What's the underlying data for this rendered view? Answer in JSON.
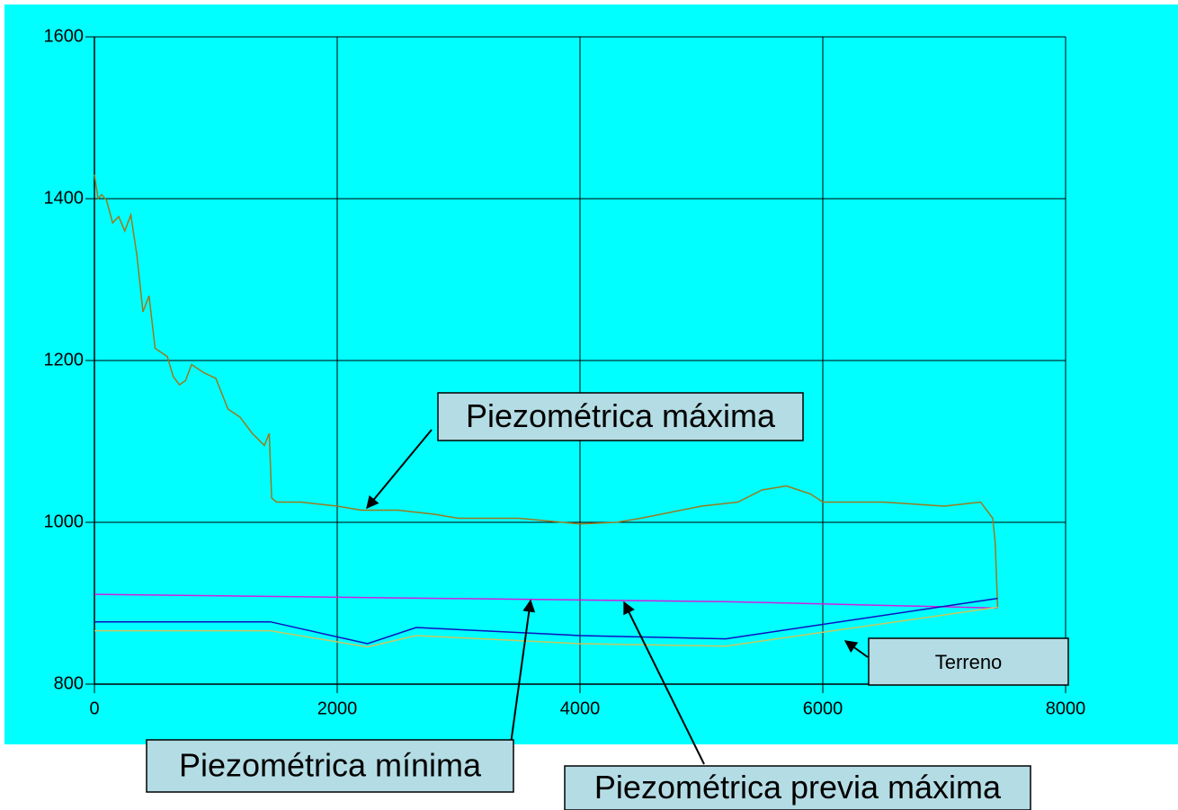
{
  "chart_data": {
    "type": "line",
    "xlim": [
      0,
      8000
    ],
    "xticks": [
      0,
      2000,
      4000,
      6000,
      8000
    ],
    "ylim": [
      800,
      1600
    ],
    "yticks": [
      800,
      1000,
      1200,
      1400,
      1600
    ],
    "grid": true,
    "series": [
      {
        "name": "Piezométrica máxima",
        "color": "#9a7a1e",
        "x": [
          0,
          30,
          60,
          100,
          150,
          200,
          250,
          300,
          350,
          400,
          450,
          500,
          550,
          600,
          650,
          700,
          750,
          800,
          900,
          1000,
          1100,
          1200,
          1300,
          1400,
          1440,
          1460,
          1500,
          1700,
          2000,
          2200,
          2500,
          2800,
          3000,
          3500,
          4000,
          4300,
          4500,
          5000,
          5300,
          5500,
          5700,
          5900,
          6000,
          6500,
          7000,
          7300,
          7400,
          7420,
          7440
        ],
        "values": [
          1430,
          1400,
          1405,
          1398,
          1370,
          1378,
          1360,
          1380,
          1330,
          1260,
          1280,
          1215,
          1210,
          1205,
          1180,
          1170,
          1175,
          1195,
          1185,
          1178,
          1140,
          1130,
          1110,
          1095,
          1110,
          1030,
          1025,
          1025,
          1020,
          1015,
          1015,
          1010,
          1005,
          1005,
          998,
          1000,
          1005,
          1020,
          1025,
          1040,
          1045,
          1035,
          1025,
          1025,
          1020,
          1025,
          1005,
          975,
          895
        ]
      },
      {
        "name": "Piezométrica previa máxima",
        "color": "#d020e0",
        "x": [
          0,
          4000,
          5200,
          7440
        ],
        "values": [
          911,
          904,
          902,
          894
        ]
      },
      {
        "name": "Piezométrica mínima",
        "color": "#1010c0",
        "x": [
          0,
          1450,
          2250,
          2650,
          4000,
          5200,
          7440
        ],
        "values": [
          877,
          877,
          850,
          870,
          860,
          856,
          906
        ]
      },
      {
        "name": "Terreno",
        "color": "#c8c860",
        "x": [
          0,
          1450,
          2250,
          2650,
          4000,
          5200,
          7440
        ],
        "values": [
          866,
          866,
          846,
          860,
          850,
          847,
          895
        ]
      }
    ]
  }
}
